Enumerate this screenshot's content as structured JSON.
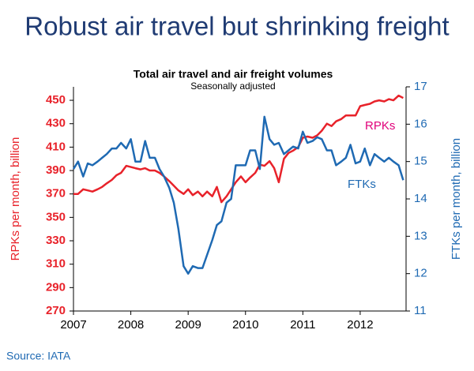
{
  "title": "Robust air travel but shrinking freight",
  "source": "Source: IATA",
  "chart_data": {
    "type": "line",
    "title": "Total air travel and air freight volumes",
    "subtitle": "Seasonally adjusted",
    "ylabel": "RPKs per month, billion",
    "y2label": "FTKs per month, billion",
    "annotations": [
      "RPKs",
      "FTKs"
    ],
    "x": [
      2007.0,
      2007.08,
      2007.17,
      2007.25,
      2007.33,
      2007.42,
      2007.5,
      2007.58,
      2007.67,
      2007.75,
      2007.83,
      2007.92,
      2008.0,
      2008.08,
      2008.17,
      2008.25,
      2008.33,
      2008.42,
      2008.5,
      2008.58,
      2008.67,
      2008.75,
      2008.83,
      2008.92,
      2009.0,
      2009.08,
      2009.17,
      2009.25,
      2009.33,
      2009.42,
      2009.5,
      2009.58,
      2009.67,
      2009.75,
      2009.83,
      2009.92,
      2010.0,
      2010.08,
      2010.17,
      2010.25,
      2010.33,
      2010.42,
      2010.5,
      2010.58,
      2010.67,
      2010.75,
      2010.83,
      2010.92,
      2011.0,
      2011.08,
      2011.17,
      2011.25,
      2011.33,
      2011.42,
      2011.5,
      2011.58,
      2011.67,
      2011.75,
      2011.83,
      2011.92,
      2012.0,
      2012.08,
      2012.17,
      2012.25,
      2012.33,
      2012.42,
      2012.5,
      2012.58,
      2012.67,
      2012.75
    ],
    "series": [
      {
        "name": "RPKs",
        "color": "#e8222a",
        "axis": "y",
        "values": [
          370,
          370,
          374,
          373,
          372,
          374,
          376,
          379,
          382,
          386,
          388,
          394,
          393,
          392,
          391,
          392,
          390,
          390,
          388,
          385,
          381,
          377,
          373,
          370,
          374,
          369,
          372,
          368,
          372,
          368,
          376,
          363,
          368,
          374,
          380,
          385,
          380,
          384,
          388,
          395,
          394,
          398,
          392,
          380,
          400,
          405,
          407,
          410,
          418,
          419,
          418,
          420,
          424,
          430,
          428,
          432,
          434,
          437,
          437,
          437,
          445,
          446,
          447,
          449,
          450,
          449,
          451,
          450,
          454,
          452
        ]
      },
      {
        "name": "FTKs",
        "color": "#1f6ab3",
        "axis": "y2",
        "values": [
          14.8,
          15.0,
          14.6,
          14.95,
          14.9,
          15.0,
          15.1,
          15.2,
          15.35,
          15.35,
          15.5,
          15.35,
          15.6,
          15.0,
          15.0,
          15.55,
          15.1,
          15.1,
          14.8,
          14.6,
          14.3,
          13.9,
          13.2,
          12.2,
          12.0,
          12.2,
          12.15,
          12.15,
          12.5,
          12.9,
          13.3,
          13.4,
          13.9,
          14.0,
          14.9,
          14.9,
          14.9,
          15.3,
          15.3,
          14.8,
          16.2,
          15.6,
          15.45,
          15.5,
          15.2,
          15.3,
          15.4,
          15.35,
          15.8,
          15.5,
          15.55,
          15.65,
          15.6,
          15.3,
          15.3,
          14.9,
          15.0,
          15.1,
          15.45,
          14.95,
          15.0,
          15.35,
          14.9,
          15.2,
          15.1,
          15.0,
          15.1,
          15.0,
          14.9,
          14.5
        ]
      }
    ],
    "xlim": [
      2007,
      2012.8
    ],
    "xticks": [
      2007,
      2008,
      2009,
      2010,
      2011,
      2012
    ],
    "ylim": [
      270,
      461.5
    ],
    "yticks": [
      270,
      290,
      310,
      330,
      350,
      370,
      390,
      410,
      430,
      450
    ],
    "y2lim": [
      11,
      17
    ],
    "y2ticks": [
      11,
      12,
      13,
      14,
      15,
      16,
      17
    ],
    "grid": false
  }
}
